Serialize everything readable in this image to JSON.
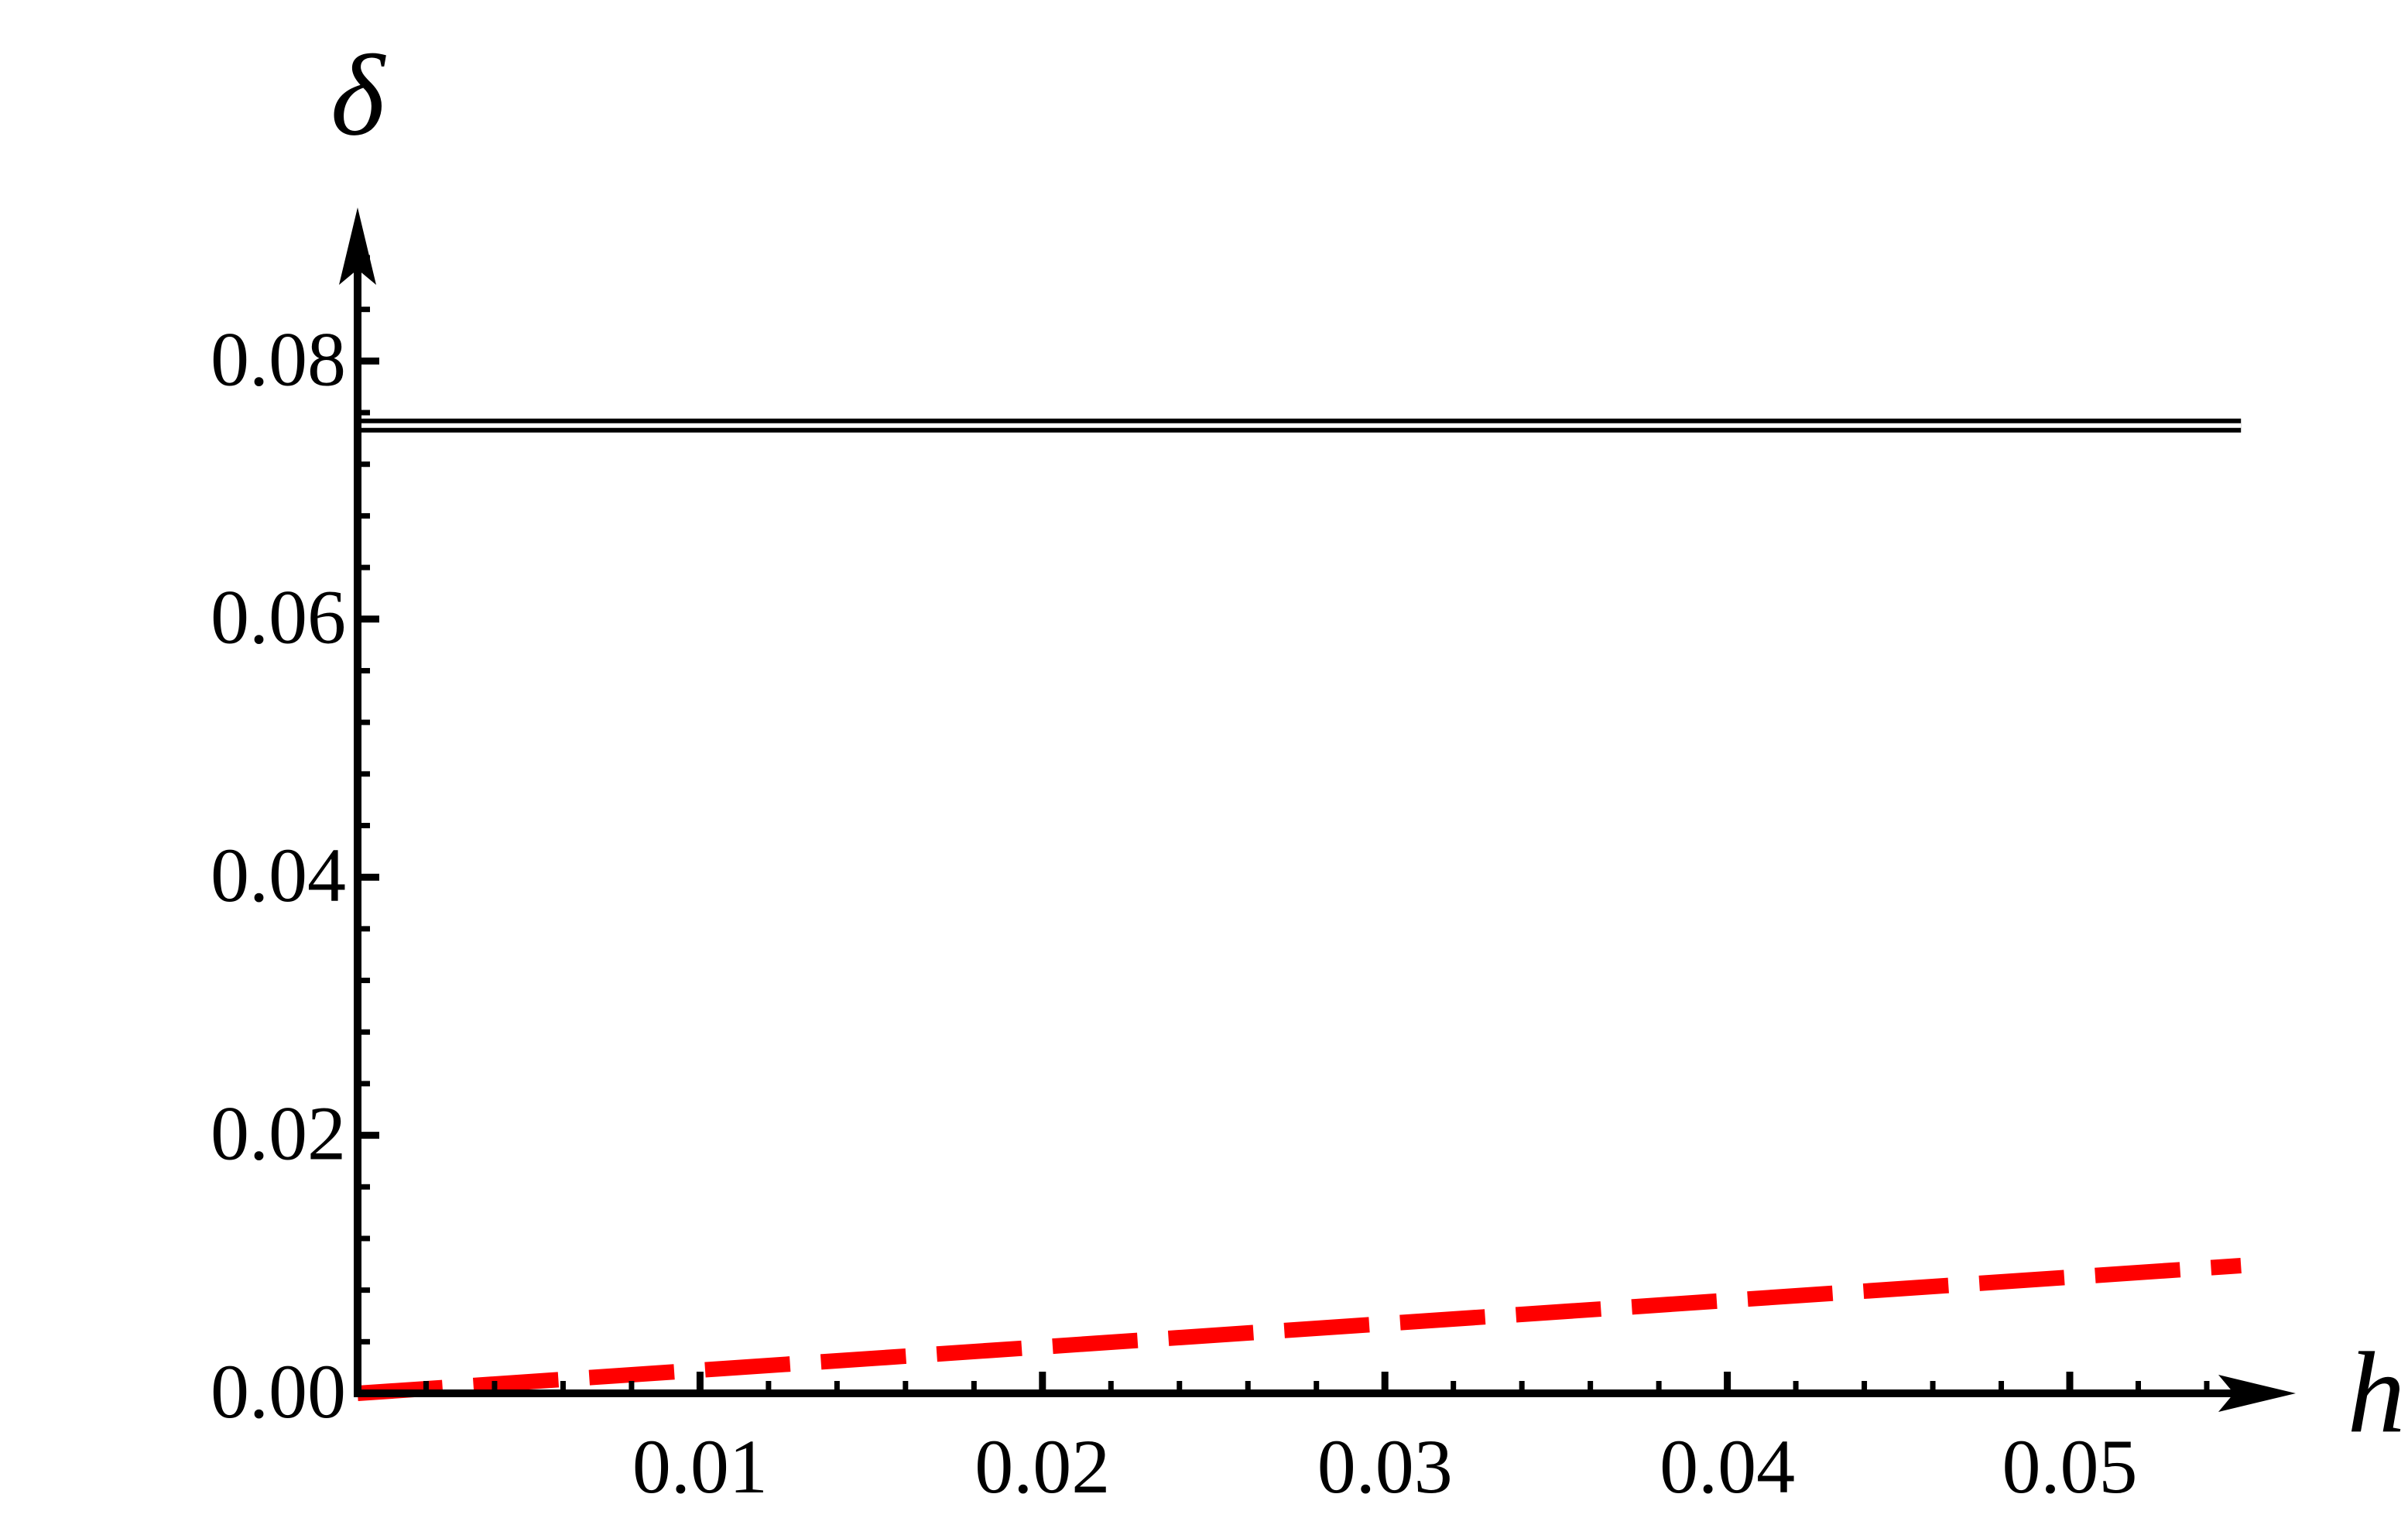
{
  "chart_data": {
    "type": "line",
    "x_label": "h",
    "y_label": "δ",
    "x": [
      0,
      0.055
    ],
    "series": [
      {
        "color": "#000000",
        "style": "double",
        "values": [
          0.075,
          0.075
        ]
      },
      {
        "color": "#ff0000",
        "style": "dashed",
        "values": [
          0,
          0.0099
        ]
      }
    ],
    "xlim": [
      0,
      0.0566
    ],
    "ylim": [
      0,
      0.0919
    ],
    "xticks": [
      0.01,
      0.02,
      0.03,
      0.04,
      0.05
    ],
    "yticks": [
      {
        "value": 0,
        "label": "0.00"
      },
      0.02,
      0.04,
      0.06,
      0.08
    ],
    "xminorticks": [
      0.002,
      0.004,
      0.006,
      0.008,
      0.012,
      0.014,
      0.016,
      0.018,
      0.022,
      0.024,
      0.026,
      0.028,
      0.032,
      0.034,
      0.036,
      0.038,
      0.042,
      0.044,
      0.046,
      0.048,
      0.052,
      0.054
    ],
    "yminorticks": [
      0.004,
      0.008,
      0.012,
      0.016,
      0.024,
      0.028,
      0.032,
      0.036,
      0.044,
      0.048,
      0.052,
      0.056,
      0.064,
      0.068,
      0.072,
      0.076,
      0.084,
      0.088
    ]
  }
}
